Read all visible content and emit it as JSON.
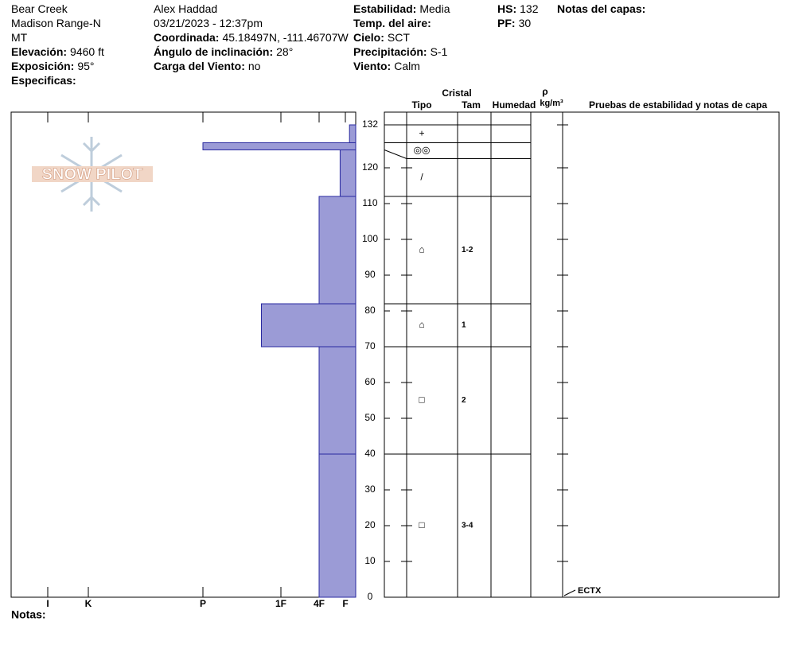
{
  "header": {
    "location": [
      "Bear Creek",
      "Madison Range-N",
      "MT"
    ],
    "observer": "Alex Haddad",
    "datetime": "03/21/2023 - 12:37pm",
    "fields": [
      {
        "label": "Elevación:",
        "value": "9460 ft"
      },
      {
        "label": "Exposición:",
        "value": "95°"
      },
      {
        "label": "Especificas:"
      },
      {
        "label": "Coordinada:",
        "value": "45.18497N, -111.46707W"
      },
      {
        "label": "Ángulo de inclinación:",
        "value": "28°"
      },
      {
        "label": "Carga del Viento:",
        "value": "no"
      },
      {
        "label": "Estabilidad:",
        "value": "Media"
      },
      {
        "label": "Temp. del aire:"
      },
      {
        "label": "Cielo:",
        "value": "SCT"
      },
      {
        "label": "Precipitación:",
        "value": "S-1"
      },
      {
        "label": "Viento:",
        "value": "Calm"
      },
      {
        "label": "HS:",
        "value": "132"
      },
      {
        "label": "PF:",
        "value": "30"
      },
      {
        "label": "Notas del capas:"
      }
    ]
  },
  "notes_label": "Notas:",
  "logo": "SNOW PILOT",
  "chart_data": {
    "type": "snow-profile",
    "ylim": [
      0,
      132
    ],
    "yticks": [
      0,
      10,
      20,
      30,
      40,
      50,
      60,
      70,
      80,
      90,
      100,
      110,
      120,
      132
    ],
    "xlim": [
      0,
      7
    ],
    "xticks": [
      {
        "value": 6,
        "label": "I"
      },
      {
        "value": 5,
        "label": "K"
      },
      {
        "value": 4,
        "label": "P"
      },
      {
        "value": 3,
        "label": "1F"
      },
      {
        "value": 2,
        "label": "4F"
      },
      {
        "value": 1,
        "label": "F"
      }
    ],
    "color": "#9b9bd6",
    "columns": {
      "crystal": "Cristal",
      "type": "Tipo",
      "size": "Tam",
      "moisture": "Humedad",
      "density": "ρ",
      "density_unit": "kg/m³",
      "tests": "Pruebas de estabilidad y notas de capa"
    },
    "layers": [
      {
        "top": 132,
        "bottom": 127,
        "hardness": 0.6,
        "crystal": "+",
        "size": null
      },
      {
        "top": 127,
        "bottom": 125,
        "hardness": 4,
        "crystal": "◎◎",
        "size": null
      },
      {
        "top": 125,
        "bottom": 112,
        "hardness": 1.2,
        "crystal": "/",
        "size": null
      },
      {
        "top": 112,
        "bottom": 82,
        "hardness": 2,
        "crystal": "⌂",
        "size": "1-2"
      },
      {
        "top": 82,
        "bottom": 70,
        "hardness": 3.25,
        "crystal": "⌂",
        "size": "1"
      },
      {
        "top": 70,
        "bottom": 40,
        "hardness": 2,
        "crystal": "□",
        "size": "2"
      },
      {
        "top": 40,
        "bottom": 0,
        "hardness": 2,
        "crystal": "□",
        "size": "3-4"
      }
    ],
    "tests": [
      {
        "label": "ECTX",
        "depth": 0
      }
    ]
  }
}
